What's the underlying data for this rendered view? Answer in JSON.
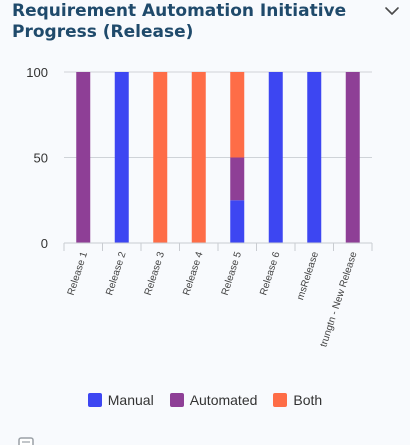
{
  "widget": {
    "title": "Requirement Automation Initiative Progress (Release)",
    "collapse_icon": "chevron-down-icon"
  },
  "colors": {
    "manual": "#3d46f2",
    "automated": "#8e3f96",
    "both": "#fe6d47",
    "title": "#1f4a6b"
  },
  "chart_data": {
    "type": "bar",
    "stacked": true,
    "title": "Requirement Automation Initiative Progress (Release)",
    "xlabel": "",
    "ylabel": "",
    "ylim": [
      0,
      100
    ],
    "yticks": [
      0,
      50,
      100
    ],
    "grid": true,
    "legend_position": "bottom",
    "categories": [
      "Release 1",
      "Release 2",
      "Release 3",
      "Release 4",
      "Release 5",
      "Release 6",
      "msRelease",
      "trungtn - New Release"
    ],
    "series": [
      {
        "name": "Manual",
        "color": "#3d46f2",
        "values": [
          0,
          100,
          0,
          0,
          25,
          100,
          100,
          0
        ]
      },
      {
        "name": "Automated",
        "color": "#8e3f96",
        "values": [
          100,
          0,
          0,
          0,
          25,
          0,
          0,
          100
        ]
      },
      {
        "name": "Both",
        "color": "#fe6d47",
        "values": [
          0,
          0,
          100,
          100,
          50,
          0,
          0,
          0
        ]
      }
    ]
  }
}
